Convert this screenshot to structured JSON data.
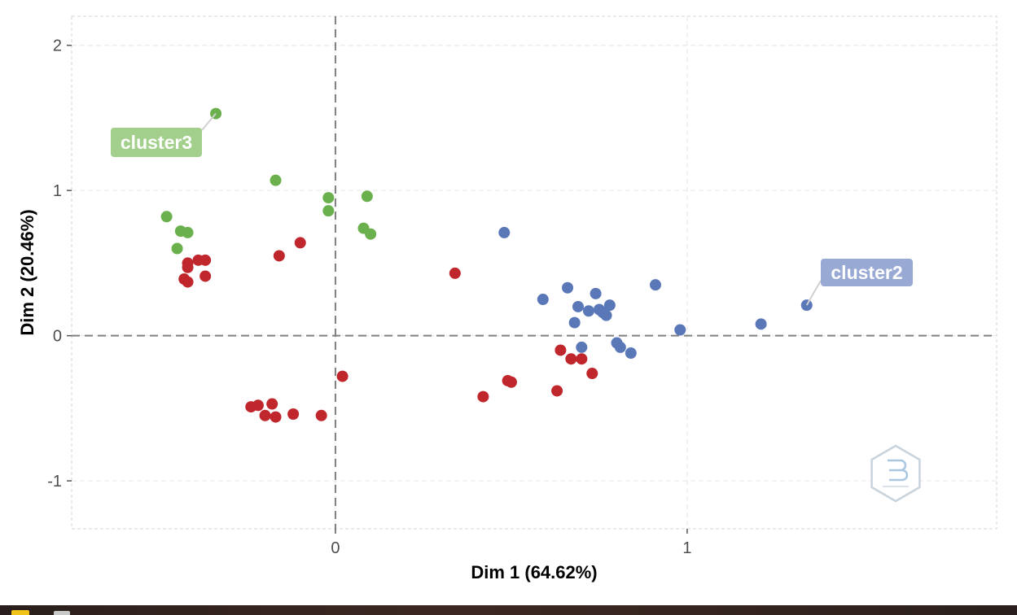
{
  "chart_data": {
    "type": "scatter",
    "title": "",
    "xlabel": "Dim 1 (64.62%)",
    "ylabel": "Dim 2 (20.46%)",
    "xlim": [
      -0.75,
      1.88
    ],
    "ylim": [
      -1.33,
      2.2
    ],
    "x_ticks": [
      0,
      1
    ],
    "x_tick_labels": [
      "0",
      "1"
    ],
    "y_ticks": [
      -1,
      0,
      1,
      2
    ],
    "y_tick_labels": [
      "-1",
      "0",
      "1",
      "2"
    ],
    "grid": true,
    "reference_lines": {
      "x": 0,
      "y": 0,
      "style": "dashed"
    },
    "series": [
      {
        "color": "#c0272d",
        "points": [
          [
            -0.42,
            0.5
          ],
          [
            -0.39,
            0.52
          ],
          [
            -0.37,
            0.52
          ],
          [
            -0.42,
            0.47
          ],
          [
            -0.43,
            0.39
          ],
          [
            -0.42,
            0.37
          ],
          [
            -0.37,
            0.41
          ],
          [
            -0.16,
            0.55
          ],
          [
            -0.1,
            0.64
          ],
          [
            0.34,
            0.43
          ],
          [
            -0.24,
            -0.49
          ],
          [
            -0.22,
            -0.48
          ],
          [
            -0.2,
            -0.55
          ],
          [
            -0.18,
            -0.47
          ],
          [
            -0.17,
            -0.56
          ],
          [
            -0.12,
            -0.54
          ],
          [
            -0.04,
            -0.55
          ],
          [
            0.02,
            -0.28
          ],
          [
            0.42,
            -0.42
          ],
          [
            0.49,
            -0.31
          ],
          [
            0.5,
            -0.32
          ],
          [
            0.63,
            -0.38
          ],
          [
            0.64,
            -0.1
          ],
          [
            0.67,
            -0.16
          ],
          [
            0.7,
            -0.16
          ],
          [
            0.73,
            -0.26
          ]
        ]
      },
      {
        "name": "cluster2",
        "color": "#5a77b8",
        "points": [
          [
            0.48,
            0.71
          ],
          [
            0.59,
            0.25
          ],
          [
            0.66,
            0.33
          ],
          [
            0.69,
            0.2
          ],
          [
            0.68,
            0.09
          ],
          [
            0.72,
            0.17
          ],
          [
            0.74,
            0.29
          ],
          [
            0.75,
            0.18
          ],
          [
            0.76,
            0.16
          ],
          [
            0.77,
            0.14
          ],
          [
            0.78,
            0.21
          ],
          [
            0.8,
            -0.05
          ],
          [
            0.81,
            -0.08
          ],
          [
            0.84,
            -0.12
          ],
          [
            0.7,
            -0.08
          ],
          [
            0.91,
            0.35
          ],
          [
            0.98,
            0.04
          ],
          [
            1.21,
            0.08
          ],
          [
            1.34,
            0.21
          ]
        ]
      },
      {
        "name": "cluster3",
        "color": "#6ab04c",
        "points": [
          [
            -0.34,
            1.53
          ],
          [
            -0.17,
            1.07
          ],
          [
            -0.48,
            0.82
          ],
          [
            -0.44,
            0.72
          ],
          [
            -0.42,
            0.71
          ],
          [
            -0.45,
            0.6
          ],
          [
            -0.02,
            0.95
          ],
          [
            -0.02,
            0.86
          ],
          [
            0.09,
            0.96
          ],
          [
            0.08,
            0.74
          ],
          [
            0.1,
            0.7
          ]
        ]
      }
    ],
    "annotations": [
      {
        "text": "cluster3",
        "color": "#a3cf8c",
        "anchor_point": [
          -0.34,
          1.53
        ]
      },
      {
        "text": "cluster2",
        "color": "#98aad4",
        "anchor_point": [
          1.34,
          0.21
        ]
      }
    ]
  },
  "logo": {
    "name": "hexagon-watermark-logo",
    "color": "#c9d3dc"
  }
}
